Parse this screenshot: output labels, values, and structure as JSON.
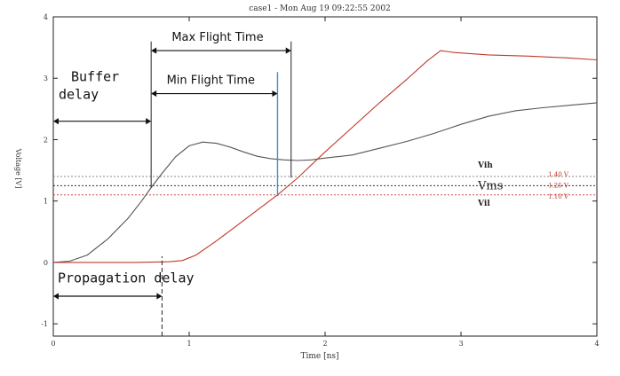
{
  "chart_data": {
    "type": "line",
    "title": "case1 - Mon Aug 19 09:22:55 2002",
    "xlabel": "Time [ns]",
    "ylabel": "Voltage [V]",
    "xlim": [
      0,
      4
    ],
    "ylim": [
      -1.2,
      4
    ],
    "x_ticks": [
      0,
      1,
      2,
      3,
      4
    ],
    "y_ticks": [
      -1,
      0,
      1,
      2,
      3,
      4
    ],
    "grid": false,
    "series": [
      {
        "color": "#555555",
        "points": [
          [
            0,
            0
          ],
          [
            0.12,
            0.02
          ],
          [
            0.25,
            0.12
          ],
          [
            0.4,
            0.38
          ],
          [
            0.55,
            0.72
          ],
          [
            0.65,
            1.0
          ],
          [
            0.72,
            1.22
          ],
          [
            0.8,
            1.45
          ],
          [
            0.9,
            1.72
          ],
          [
            1.0,
            1.9
          ],
          [
            1.1,
            1.96
          ],
          [
            1.2,
            1.94
          ],
          [
            1.3,
            1.88
          ],
          [
            1.4,
            1.8
          ],
          [
            1.5,
            1.73
          ],
          [
            1.6,
            1.69
          ],
          [
            1.7,
            1.67
          ],
          [
            1.8,
            1.66
          ],
          [
            1.9,
            1.67
          ],
          [
            2.0,
            1.7
          ],
          [
            2.2,
            1.75
          ],
          [
            2.4,
            1.86
          ],
          [
            2.6,
            1.97
          ],
          [
            2.8,
            2.1
          ],
          [
            3.0,
            2.25
          ],
          [
            3.2,
            2.38
          ],
          [
            3.4,
            2.47
          ],
          [
            3.6,
            2.52
          ],
          [
            3.8,
            2.56
          ],
          [
            4.0,
            2.6
          ]
        ]
      },
      {
        "color": "#c0392b",
        "points": [
          [
            0,
            0
          ],
          [
            0.6,
            0.0
          ],
          [
            0.85,
            0.01
          ],
          [
            0.95,
            0.03
          ],
          [
            1.05,
            0.12
          ],
          [
            1.2,
            0.35
          ],
          [
            1.35,
            0.6
          ],
          [
            1.5,
            0.85
          ],
          [
            1.65,
            1.1
          ],
          [
            1.8,
            1.38
          ],
          [
            2.0,
            1.8
          ],
          [
            2.2,
            2.2
          ],
          [
            2.4,
            2.6
          ],
          [
            2.6,
            2.98
          ],
          [
            2.75,
            3.28
          ],
          [
            2.85,
            3.45
          ],
          [
            2.95,
            3.42
          ],
          [
            3.2,
            3.38
          ],
          [
            3.5,
            3.36
          ],
          [
            3.8,
            3.33
          ],
          [
            4.0,
            3.3
          ]
        ]
      }
    ],
    "thresholds": [
      {
        "name": "Vih",
        "value": 1.4,
        "label": "1.40 V",
        "color": "#888888",
        "style": "dotted"
      },
      {
        "name": "Vms",
        "value": 1.25,
        "label": "1.25 V",
        "color": "#333333",
        "style": "dotted"
      },
      {
        "name": "Vil",
        "value": 1.1,
        "label": "1.10 V",
        "color": "#d44b4b",
        "style": "dotted"
      }
    ],
    "annotations": [
      {
        "text": "Max Flight Time",
        "from_x": 0.72,
        "to_x": 1.75,
        "y": 3.45
      },
      {
        "text": "Min Flight Time",
        "from_x": 0.72,
        "to_x": 1.65,
        "y": 2.75
      },
      {
        "text": "Buffer\ndelay",
        "from_x": 0,
        "to_x": 0.72,
        "y": 2.3
      },
      {
        "text": "Propagation delay",
        "from_x": 0,
        "to_x": 0.8,
        "y": -0.55
      }
    ],
    "marker_lines": [
      {
        "x": 0.72,
        "y_from": 1.22,
        "y_to": 3.6,
        "color": "#222222",
        "style": "solid"
      },
      {
        "x": 1.75,
        "y_from": 1.38,
        "y_to": 3.6,
        "color": "#222222",
        "style": "solid"
      },
      {
        "x": 1.65,
        "y_from": 1.08,
        "y_to": 3.1,
        "color": "#3a8fd6",
        "style": "solid"
      },
      {
        "x": 0.8,
        "y_from": -1.2,
        "y_to": 0.1,
        "color": "#222222",
        "style": "dashed"
      }
    ],
    "caption": ""
  }
}
